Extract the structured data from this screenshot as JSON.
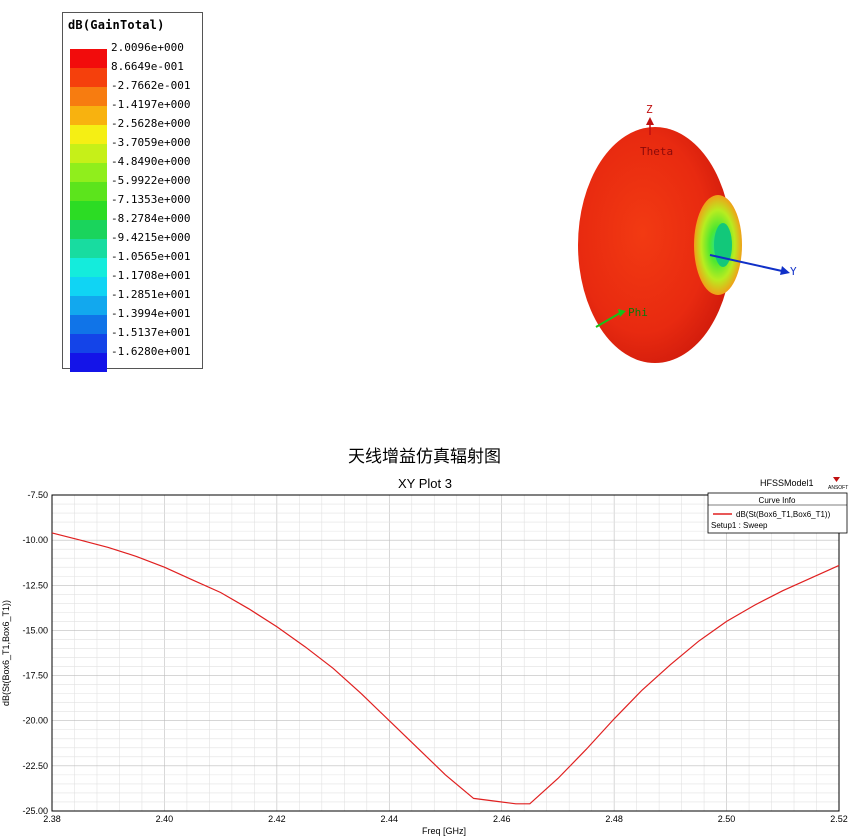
{
  "legend": {
    "title": "dB(GainTotal)",
    "entries": [
      {
        "value": "2.0096e+000",
        "color": "#f20c0c"
      },
      {
        "value": "8.6649e-001",
        "color": "#f5400c"
      },
      {
        "value": "-2.7662e-001",
        "color": "#f77c10"
      },
      {
        "value": "-1.4197e+000",
        "color": "#f8b20f"
      },
      {
        "value": "-2.5628e+000",
        "color": "#f5ef14"
      },
      {
        "value": "-3.7059e+000",
        "color": "#c6f018"
      },
      {
        "value": "-4.8490e+000",
        "color": "#90ee1c"
      },
      {
        "value": "-5.9922e+000",
        "color": "#5ce41c"
      },
      {
        "value": "-7.1353e+000",
        "color": "#2cdc24"
      },
      {
        "value": "-8.2784e+000",
        "color": "#1ad45c"
      },
      {
        "value": "-9.4215e+000",
        "color": "#18dca0"
      },
      {
        "value": "-1.0565e+001",
        "color": "#14ecdc"
      },
      {
        "value": "-1.1708e+001",
        "color": "#10d4f4"
      },
      {
        "value": "-1.2851e+001",
        "color": "#12a8ee"
      },
      {
        "value": "-1.3994e+001",
        "color": "#1074e8"
      },
      {
        "value": "-1.5137e+001",
        "color": "#1444e8"
      },
      {
        "value": "-1.6280e+001",
        "color": "#1414e8"
      }
    ]
  },
  "pattern_axes": {
    "z": "Z",
    "theta": "Theta",
    "y": "Y",
    "phi": "Phi"
  },
  "caption": "天线增益仿真辐射图",
  "xy_plot": {
    "title": "XY Plot 3",
    "model": "HFSSModel1",
    "brand": "ANSOFT",
    "curve_info_title": "Curve Info",
    "curve_name": "dB(St(Box6_T1,Box6_T1))",
    "setup": "Setup1 : Sweep"
  },
  "chart_data": {
    "type": "line",
    "title": "XY Plot 3",
    "xlabel": "Freq [GHz]",
    "ylabel": "dB(St(Box6_T1,Box6_T1))",
    "xlim": [
      2.38,
      2.52
    ],
    "ylim": [
      -25.0,
      -7.5
    ],
    "xticks": [
      "2.38",
      "2.40",
      "2.42",
      "2.44",
      "2.46",
      "2.48",
      "2.50",
      "2.52"
    ],
    "yticks": [
      "-7.50",
      "-10.00",
      "-12.50",
      "-15.00",
      "-17.50",
      "-20.00",
      "-22.50",
      "-25.00"
    ],
    "grid": true,
    "legend_position": "top-right",
    "series": [
      {
        "name": "dB(St(Box6_T1,Box6_T1))",
        "color": "#e02020",
        "x": [
          2.38,
          2.385,
          2.39,
          2.395,
          2.4,
          2.405,
          2.41,
          2.415,
          2.42,
          2.425,
          2.43,
          2.435,
          2.44,
          2.445,
          2.45,
          2.455,
          2.46,
          2.4625,
          2.465,
          2.47,
          2.475,
          2.48,
          2.485,
          2.49,
          2.495,
          2.5,
          2.505,
          2.51,
          2.515,
          2.52
        ],
        "y": [
          -9.6,
          -10.0,
          -10.4,
          -10.9,
          -11.5,
          -12.2,
          -12.9,
          -13.8,
          -14.8,
          -15.9,
          -17.1,
          -18.5,
          -20.0,
          -21.5,
          -23.0,
          -24.3,
          -24.5,
          -24.6,
          -24.6,
          -23.2,
          -21.6,
          -19.9,
          -18.3,
          -16.9,
          -15.6,
          -14.5,
          -13.6,
          -12.8,
          -12.1,
          -11.4
        ]
      }
    ]
  }
}
